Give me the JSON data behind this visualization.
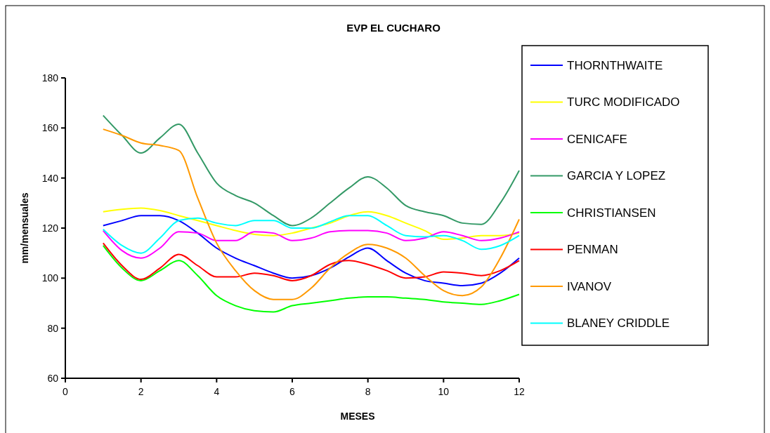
{
  "chart_data": {
    "type": "line",
    "title": "EVP EL CUCHARO",
    "xlabel": "MESES",
    "ylabel": "mm/mensuales",
    "x": [
      1,
      1.5,
      2,
      2.5,
      3,
      3.5,
      4,
      4.5,
      5,
      5.5,
      6,
      6.5,
      7,
      7.5,
      8,
      8.5,
      9,
      9.5,
      10,
      10.5,
      11,
      11.5,
      12
    ],
    "xlim": [
      0,
      12
    ],
    "xticks": [
      0,
      2,
      4,
      6,
      8,
      10,
      12
    ],
    "ylim": [
      60,
      180
    ],
    "yticks": [
      60,
      80,
      100,
      120,
      140,
      160,
      180
    ],
    "grid": false,
    "legend": "right",
    "marker": "none",
    "line_style": "solid",
    "series": [
      {
        "name": "THORNTHWAITE",
        "color": "#0000ff",
        "values": [
          121,
          123,
          125,
          125,
          123,
          118,
          112,
          108,
          105,
          102,
          100,
          101,
          104,
          108.5,
          112,
          107,
          102,
          99,
          98,
          97,
          98,
          102,
          108
        ]
      },
      {
        "name": "TURC MODIFICADO",
        "color": "#ffff00",
        "values": [
          126.5,
          127.5,
          128,
          127,
          125,
          123,
          121,
          119,
          117.5,
          117,
          118,
          120,
          122,
          125,
          126.5,
          125,
          122,
          119,
          115.5,
          116,
          117,
          117,
          118
        ]
      },
      {
        "name": "CENICAFE",
        "color": "#ff00ff",
        "values": [
          119,
          111,
          108,
          112,
          118.5,
          118,
          115,
          115,
          118.5,
          118,
          115,
          116,
          118.5,
          119,
          119,
          118,
          115,
          116,
          118.5,
          117,
          115,
          116,
          118.5
        ]
      },
      {
        "name": "GARCIA Y LOPEZ",
        "color": "#339966",
        "values": [
          165,
          157,
          150,
          156,
          161.5,
          150,
          138,
          133,
          130,
          125,
          121,
          124,
          130,
          136,
          140.5,
          136,
          129,
          126.5,
          125,
          122,
          121.5,
          130,
          143
        ]
      },
      {
        "name": "CHRISTIANSEN",
        "color": "#00ff00",
        "values": [
          113,
          104,
          99,
          103,
          107,
          101,
          93,
          89,
          87,
          86.5,
          89,
          90,
          91,
          92,
          92.5,
          92.5,
          92,
          91.5,
          90.5,
          90,
          89.5,
          91,
          93.5
        ]
      },
      {
        "name": "PENMAN",
        "color": "#ff0000",
        "values": [
          114,
          105,
          99.5,
          104,
          109.5,
          105,
          100.5,
          100.5,
          102,
          101,
          99,
          101,
          105.5,
          107,
          105.5,
          103,
          100,
          100.5,
          102.5,
          102,
          101,
          103,
          107
        ]
      },
      {
        "name": "IVANOV",
        "color": "#ff9900",
        "values": [
          159.5,
          157,
          154,
          153,
          151,
          132,
          114,
          103,
          95,
          91.5,
          91.5,
          96,
          104,
          110,
          113.5,
          112,
          108,
          101,
          95,
          93,
          96.5,
          108,
          123.5
        ]
      },
      {
        "name": "BLANEY CRIDDLE",
        "color": "#00ffff",
        "values": [
          119.5,
          113,
          110,
          116,
          123,
          124,
          122,
          121,
          123,
          123,
          120,
          120,
          122.5,
          125,
          125,
          121,
          117,
          116.5,
          117,
          115,
          111.5,
          113,
          117
        ]
      }
    ]
  }
}
